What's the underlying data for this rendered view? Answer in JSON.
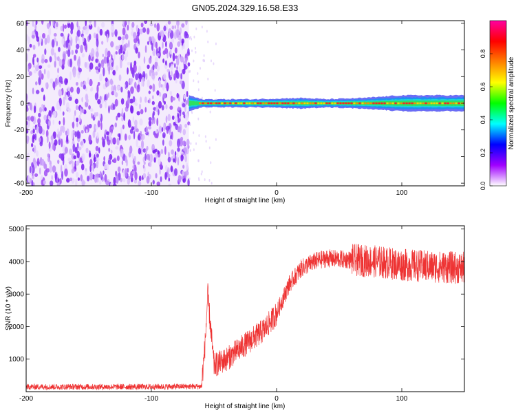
{
  "title": "GN05.2024.329.16.58.E33",
  "chart_data": [
    {
      "type": "heatmap",
      "name": "spectrogram",
      "xlabel": "Height of straight line (km)",
      "ylabel": "Frequency (Hz)",
      "xlim": [
        -200,
        150
      ],
      "ylim": [
        -62,
        62
      ],
      "xticks": [
        -200,
        -100,
        0,
        100
      ],
      "yticks": [
        -60,
        -40,
        -20,
        0,
        20,
        40,
        60
      ],
      "noise_region_x": [
        -200,
        -70
      ],
      "signal_band": {
        "x_start": -70,
        "x_end": 150,
        "center_hz": 0,
        "core_halfwidth_hz": 2,
        "outer_halfwidth_hz": 5,
        "points": [
          {
            "x": -70,
            "halfwidth_hz": 6
          },
          {
            "x": -60,
            "halfwidth_hz": 3
          },
          {
            "x": -20,
            "halfwidth_hz": 3
          },
          {
            "x": 20,
            "halfwidth_hz": 4
          },
          {
            "x": 40,
            "halfwidth_hz": 3
          },
          {
            "x": 70,
            "halfwidth_hz": 4
          },
          {
            "x": 100,
            "halfwidth_hz": 6
          },
          {
            "x": 150,
            "halfwidth_hz": 6
          }
        ]
      },
      "colorbar": {
        "label": "Normalized spectral amplitude",
        "range": [
          0,
          1
        ],
        "ticks": [
          0.0,
          0.2,
          0.4,
          0.6,
          0.8
        ],
        "tick_labels": [
          "0.0",
          "0.2",
          "0.4",
          "0.6",
          "0.8"
        ],
        "colors": [
          "#ffffff",
          "#a000ff",
          "#0000ff",
          "#00ffff",
          "#00ff00",
          "#ffff00",
          "#ff8000",
          "#ff0000",
          "#ff00a0"
        ]
      },
      "grid": false
    },
    {
      "type": "line",
      "name": "snr",
      "xlabel": "Height of straight line (km)",
      "ylabel": "SNR (10 * v/v)",
      "xlim": [
        -200,
        150
      ],
      "ylim": [
        0,
        5100
      ],
      "xticks": [
        -200,
        -100,
        0,
        100
      ],
      "yticks": [
        1000,
        2000,
        3000,
        4000,
        5000
      ],
      "color": "#ee3333",
      "grid": false,
      "series": [
        {
          "x": [
            -200,
            -150,
            -100,
            -70,
            -60,
            -57,
            -55,
            -50,
            -40,
            -30,
            -20,
            -10,
            0,
            10,
            20,
            30,
            40,
            60,
            80,
            100,
            120,
            150
          ],
          "y": [
            150,
            150,
            150,
            160,
            160,
            1500,
            3000,
            800,
            1000,
            1300,
            1600,
            1900,
            2400,
            3300,
            3800,
            4000,
            4100,
            4050,
            4000,
            3900,
            3850,
            3800
          ]
        }
      ]
    }
  ]
}
